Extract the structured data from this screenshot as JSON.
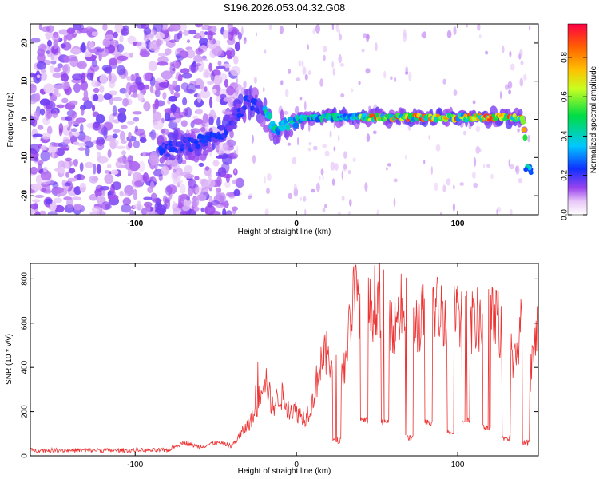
{
  "title": "S196.2026.053.04.32.G08",
  "chart_data": [
    {
      "type": "heatmap",
      "xlabel": "Height of straight line (km)",
      "ylabel": "Frequency (Hz)",
      "xlim": [
        -165,
        150
      ],
      "ylim": [
        -25,
        25
      ],
      "xticks": [
        -100,
        0,
        100
      ],
      "yticks": [
        -20,
        -10,
        0,
        10,
        20
      ],
      "colorbar": {
        "label": "Normalized spectral amplitude",
        "range": [
          0,
          0.97
        ],
        "ticks": [
          "0.0",
          "0.2",
          "0.4",
          "0.6",
          "0.8"
        ],
        "tick_values": [
          0,
          0.2,
          0.4,
          0.6,
          0.8
        ],
        "colormap": "rainbow (white-violet-blue-cyan-green-yellow-red)"
      },
      "ridge": {
        "description": "dominant frequency track",
        "points": [
          {
            "x": -80,
            "y": -8
          },
          {
            "x": -60,
            "y": -6
          },
          {
            "x": -45,
            "y": -3
          },
          {
            "x": -30,
            "y": 5
          },
          {
            "x": -20,
            "y": 2
          },
          {
            "x": -12,
            "y": -3
          },
          {
            "x": 0,
            "y": 0
          },
          {
            "x": 20,
            "y": 0.5
          },
          {
            "x": 40,
            "y": 0.5
          },
          {
            "x": 60,
            "y": 0.5
          },
          {
            "x": 80,
            "y": 0.5
          },
          {
            "x": 100,
            "y": 0.5
          },
          {
            "x": 120,
            "y": 0.5
          },
          {
            "x": 140,
            "y": 0.5
          },
          {
            "x": 145,
            "y": -13
          }
        ]
      }
    },
    {
      "type": "line",
      "xlabel": "Height of straight line (km)",
      "ylabel": "SNR (10 * v/v)",
      "xlim": [
        -165,
        150
      ],
      "ylim": [
        0,
        870
      ],
      "xticks": [
        -100,
        0,
        100
      ],
      "yticks": [
        0,
        200,
        400,
        600,
        800
      ],
      "color": "#ee3333",
      "series": [
        {
          "x": [
            -165,
            -140,
            -120,
            -100,
            -80,
            -70,
            -60,
            -50,
            -40,
            -30,
            -25,
            -20,
            -15,
            -10,
            -5,
            0,
            5,
            10,
            15,
            20,
            25,
            30,
            35,
            40,
            45,
            50,
            55,
            60,
            65,
            70,
            75,
            80,
            85,
            90,
            95,
            100,
            105,
            110,
            115,
            120,
            125,
            130,
            135,
            140,
            145,
            150
          ],
          "y": [
            25,
            25,
            25,
            25,
            25,
            60,
            40,
            60,
            45,
            140,
            200,
            380,
            220,
            280,
            220,
            200,
            170,
            240,
            430,
            460,
            410,
            400,
            720,
            700,
            650,
            720,
            690,
            600,
            660,
            640,
            600,
            640,
            680,
            650,
            640,
            650,
            620,
            600,
            620,
            620,
            610,
            450,
            400,
            600,
            350,
            600
          ]
        }
      ],
      "dips": [
        {
          "x": 25,
          "y": 70
        },
        {
          "x": 42,
          "y": 160
        },
        {
          "x": 55,
          "y": 150
        },
        {
          "x": 70,
          "y": 80
        },
        {
          "x": 82,
          "y": 150
        },
        {
          "x": 96,
          "y": 110
        },
        {
          "x": 105,
          "y": 160
        },
        {
          "x": 118,
          "y": 130
        },
        {
          "x": 130,
          "y": 80
        },
        {
          "x": 142,
          "y": 60
        }
      ]
    }
  ]
}
